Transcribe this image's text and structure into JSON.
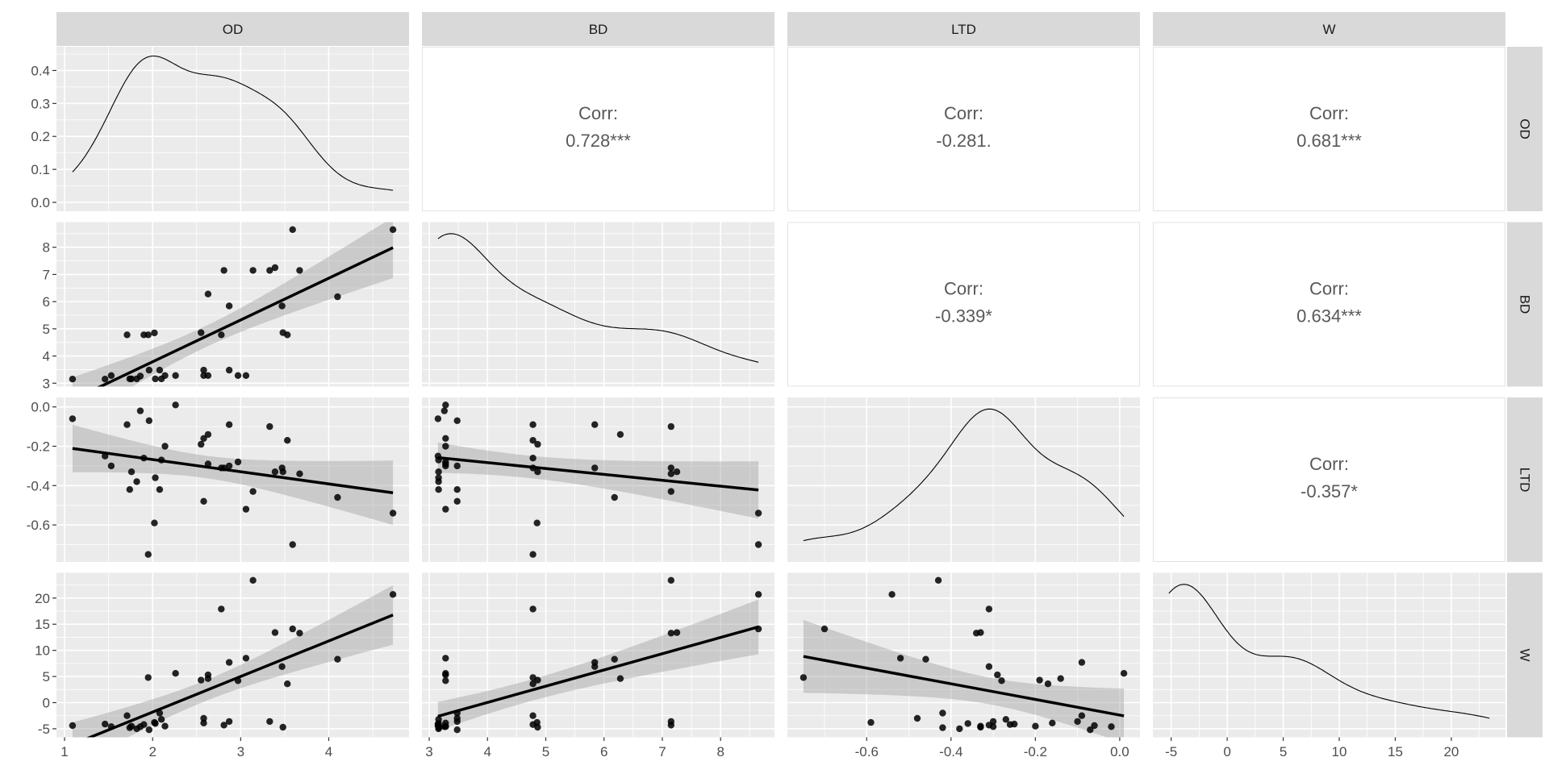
{
  "chart_data": {
    "type": "scatter-matrix",
    "variables": [
      "OD",
      "BD",
      "LTD",
      "W"
    ],
    "upper": "correlation",
    "diagonal": "density",
    "lower": "scatter with linear fit and confidence band",
    "observations_columns": [
      "OD",
      "BD",
      "LTD",
      "W"
    ],
    "observations": [
      [
        1.09,
        3.15,
        -0.06,
        -4.4
      ],
      [
        1.46,
        3.15,
        -0.25,
        -4.1
      ],
      [
        1.53,
        3.28,
        -0.3,
        -4.6
      ],
      [
        1.71,
        4.78,
        -0.09,
        -2.5
      ],
      [
        1.74,
        3.16,
        -0.42,
        -4.8
      ],
      [
        1.76,
        3.16,
        -0.33,
        -4.5
      ],
      [
        1.82,
        3.16,
        -0.38,
        -5.0
      ],
      [
        1.86,
        3.26,
        -0.02,
        -4.6
      ],
      [
        1.9,
        4.78,
        -0.26,
        -4.2
      ],
      [
        1.95,
        4.78,
        -0.75,
        4.8
      ],
      [
        1.96,
        3.48,
        -0.07,
        -5.2
      ],
      [
        2.02,
        4.85,
        -0.59,
        -3.8
      ],
      [
        2.03,
        3.16,
        -0.36,
        -4.0
      ],
      [
        2.08,
        3.48,
        -0.42,
        -2.0
      ],
      [
        2.1,
        3.16,
        -0.27,
        -3.2
      ],
      [
        2.14,
        3.28,
        -0.2,
        -4.5
      ],
      [
        2.26,
        3.28,
        0.01,
        5.6
      ],
      [
        2.55,
        4.86,
        -0.19,
        4.3
      ],
      [
        2.58,
        3.48,
        -0.48,
        -3.0
      ],
      [
        2.58,
        3.28,
        -0.16,
        -3.9
      ],
      [
        2.63,
        3.28,
        -0.29,
        5.3
      ],
      [
        2.63,
        6.28,
        -0.14,
        4.6
      ],
      [
        2.78,
        4.78,
        -0.31,
        17.9
      ],
      [
        2.81,
        7.15,
        -0.31,
        -4.3
      ],
      [
        2.87,
        5.84,
        -0.09,
        7.7
      ],
      [
        2.87,
        3.48,
        -0.3,
        -3.6
      ],
      [
        2.97,
        3.28,
        -0.28,
        4.2
      ],
      [
        3.06,
        3.28,
        -0.52,
        8.5
      ],
      [
        3.14,
        7.15,
        -0.43,
        23.4
      ],
      [
        3.33,
        7.15,
        -0.1,
        -3.6
      ],
      [
        3.39,
        7.25,
        -0.33,
        13.4
      ],
      [
        3.47,
        5.84,
        -0.31,
        6.9
      ],
      [
        3.48,
        4.86,
        -0.33,
        -4.7
      ],
      [
        3.53,
        4.78,
        -0.17,
        3.6
      ],
      [
        3.59,
        8.65,
        -0.7,
        14.1
      ],
      [
        3.67,
        7.15,
        -0.34,
        13.3
      ],
      [
        4.1,
        6.18,
        -0.46,
        8.3
      ],
      [
        4.73,
        8.65,
        -0.54,
        20.7
      ]
    ],
    "correlations": [
      {
        "row": "OD",
        "col": "BD",
        "label": "Corr:",
        "value": "0.728***"
      },
      {
        "row": "OD",
        "col": "LTD",
        "label": "Corr:",
        "value": "-0.281."
      },
      {
        "row": "OD",
        "col": "W",
        "label": "Corr:",
        "value": "0.681***"
      },
      {
        "row": "BD",
        "col": "LTD",
        "label": "Corr:",
        "value": "-0.339*"
      },
      {
        "row": "BD",
        "col": "W",
        "label": "Corr:",
        "value": "0.634***"
      },
      {
        "row": "LTD",
        "col": "W",
        "label": "Corr:",
        "value": "-0.357*"
      }
    ],
    "ticks": {
      "OD": [
        "1",
        "2",
        "3",
        "4"
      ],
      "BD": [
        "3",
        "4",
        "5",
        "6",
        "7",
        "8"
      ],
      "LTD": [
        "-0.6",
        "-0.4",
        "-0.2",
        "0.0"
      ],
      "W": [
        "-5",
        "0",
        "5",
        "10",
        "15",
        "20"
      ]
    },
    "density_y_ticks": [
      "0.0",
      "0.1",
      "0.2",
      "0.3",
      "0.4"
    ],
    "density_ylim": [
      -0.027,
      0.472
    ],
    "grid": true,
    "legend": "none",
    "colors": {
      "panel_background": "#EBEBEB",
      "grid": "#FFFFFF",
      "strip_background": "#D9D9D9",
      "points": "#000000",
      "fit_line": "#000000",
      "confidence_band": "#999999",
      "correlation_text": "#595959"
    }
  }
}
